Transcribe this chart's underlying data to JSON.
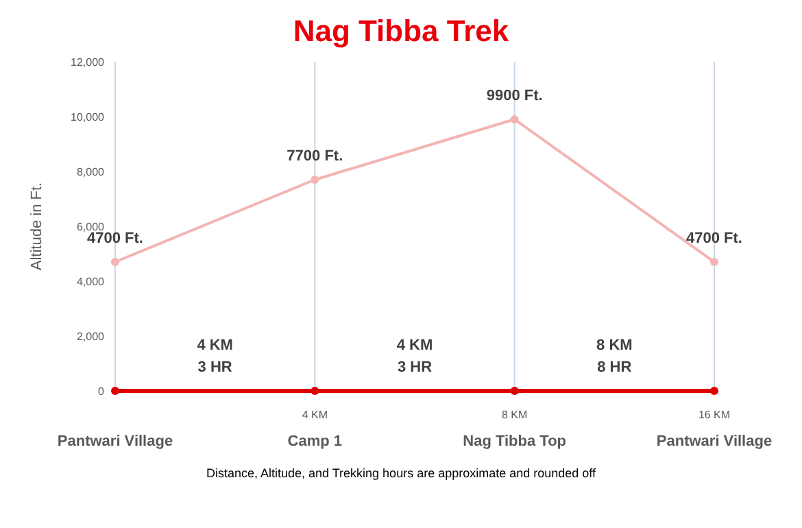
{
  "chart_data": {
    "type": "line",
    "title": "Nag Tibba Trek",
    "ylabel": "Altitude in Ft.",
    "categories": [
      "Pantwari Village",
      "Camp 1",
      "Nag Tibba Top",
      "Pantwari Village"
    ],
    "series": [
      {
        "color": "#f4b4b4",
        "values": [
          4700,
          7700,
          9900,
          4700
        ],
        "value_labels": [
          "4700 Ft.",
          "7700 Ft.",
          "9900 Ft.",
          "4700 Ft."
        ]
      },
      {
        "color": "#dd0000",
        "values": [
          0,
          0,
          0,
          0
        ]
      }
    ],
    "ylim": [
      0,
      12000
    ],
    "yticks": [
      {
        "value": 0,
        "label": "0"
      },
      {
        "value": 2000,
        "label": "2,000"
      },
      {
        "value": 4000,
        "label": "4,000"
      },
      {
        "value": 6000,
        "label": "6,000"
      },
      {
        "value": 8000,
        "label": "8,000"
      },
      {
        "value": 10000,
        "label": "10,000"
      },
      {
        "value": 12000,
        "label": "12,000"
      }
    ],
    "grid": "x",
    "marker": "circle",
    "line_style": "solid",
    "annotations": [
      "4 KM\n3 HR",
      "4 KM\n3 HR",
      "8 KM\n8 HR",
      "4 KM",
      "8 KM",
      "16 KM",
      "Distance, Altitude, and Trekking hours are approximate and rounded off"
    ]
  }
}
